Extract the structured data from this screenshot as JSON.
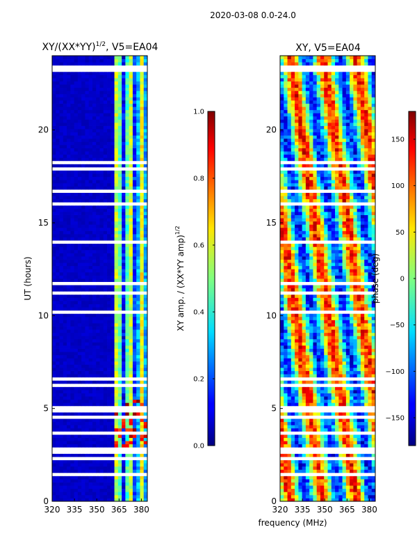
{
  "suptitle": "2020-03-08 0.0-24.0",
  "xlabel": "frequency (MHz)",
  "chart_data": [
    {
      "type": "heatmap",
      "title": "XY/(XX*YY)",
      "title_sup": "1/2",
      "title_suffix": ", V5=EA04",
      "xlabel": "",
      "ylabel": "UT (hours)",
      "xlim": [
        320,
        384
      ],
      "ylim": [
        0,
        24
      ],
      "xticks": [
        "320",
        "335",
        "350",
        "365",
        "380"
      ],
      "yticks": [
        "0",
        "5",
        "10",
        "15",
        "20"
      ],
      "colorbar": {
        "label": "XY amp. / (XX*YY amp)",
        "label_sup": "1/2",
        "range": [
          0.0,
          1.0
        ],
        "ticks": [
          "0.0",
          "0.2",
          "0.4",
          "0.6",
          "0.8",
          "1.0"
        ],
        "colormap": "jet"
      }
    },
    {
      "type": "heatmap",
      "title": "XY, V5=EA04",
      "xlabel": "frequency (MHz)",
      "ylabel": "",
      "xlim": [
        320,
        384
      ],
      "ylim": [
        0,
        24
      ],
      "xticks": [
        "320",
        "335",
        "350",
        "365",
        "380"
      ],
      "yticks": [
        "0",
        "5",
        "10",
        "15",
        "20"
      ],
      "colorbar": {
        "label": "phase (deg)",
        "range": [
          -180,
          180
        ],
        "ticks": [
          "−150",
          "−100",
          "−50",
          "0",
          "50",
          "100",
          "150"
        ],
        "colormap": "jet"
      }
    }
  ]
}
